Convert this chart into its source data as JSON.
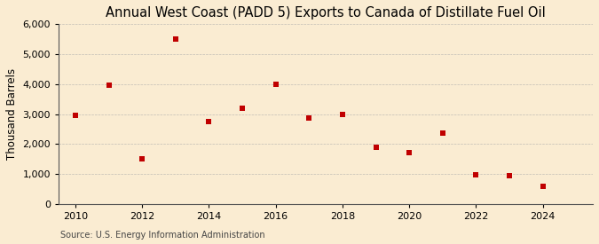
{
  "title": "Annual West Coast (PADD 5) Exports to Canada of Distillate Fuel Oil",
  "ylabel": "Thousand Barrels",
  "source": "Source: U.S. Energy Information Administration",
  "years": [
    2010,
    2011,
    2012,
    2013,
    2014,
    2015,
    2016,
    2017,
    2018,
    2019,
    2020,
    2021,
    2022,
    2023,
    2024
  ],
  "values": [
    2950,
    3950,
    1500,
    5500,
    2750,
    3200,
    4000,
    2875,
    3000,
    1900,
    1700,
    2350,
    975,
    950,
    600
  ],
  "marker_color": "#c00000",
  "marker": "s",
  "marker_size": 4,
  "background_color": "#faecd2",
  "grid_color": "#aaaaaa",
  "ylim": [
    0,
    6000
  ],
  "yticks": [
    0,
    1000,
    2000,
    3000,
    4000,
    5000,
    6000
  ],
  "xlim": [
    2009.5,
    2025.5
  ],
  "xticks": [
    2010,
    2012,
    2014,
    2016,
    2018,
    2020,
    2022,
    2024
  ],
  "title_fontsize": 10.5,
  "label_fontsize": 8.5,
  "tick_fontsize": 8,
  "source_fontsize": 7
}
